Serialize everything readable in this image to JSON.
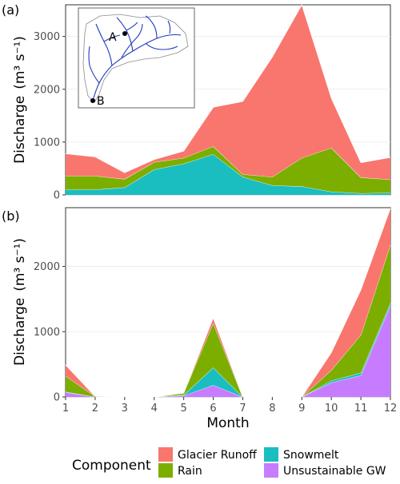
{
  "chart_data": [
    {
      "panel_tag": "(a)",
      "type": "area",
      "stacked": true,
      "x": [
        1,
        2,
        3,
        4,
        5,
        6,
        7,
        8,
        9,
        10,
        11,
        12
      ],
      "ylim": [
        0,
        3600
      ],
      "yticks": [
        0,
        1000,
        2000,
        3000
      ],
      "ylabel": "Discharge",
      "ylabel_unit": "(m³ s⁻¹)",
      "series": [
        {
          "name": "Snowmelt",
          "color": "#1ABDC0",
          "values": [
            100,
            100,
            140,
            480,
            590,
            770,
            340,
            180,
            160,
            60,
            30,
            40
          ]
        },
        {
          "name": "Rain",
          "color": "#7CAE00",
          "values": [
            260,
            260,
            160,
            140,
            110,
            150,
            50,
            160,
            540,
            830,
            300,
            250
          ]
        },
        {
          "name": "Glacier Runoff",
          "color": "#F8766D",
          "values": [
            420,
            360,
            120,
            50,
            130,
            740,
            1380,
            2270,
            2900,
            940,
            280,
            420
          ]
        }
      ],
      "inset": {
        "label_a": "A",
        "label_b": "B"
      }
    },
    {
      "panel_tag": "(b)",
      "type": "area",
      "stacked": true,
      "x": [
        1,
        2,
        3,
        4,
        5,
        6,
        7,
        8,
        9,
        10,
        11,
        12
      ],
      "xticks": [
        1,
        2,
        3,
        4,
        5,
        6,
        7,
        8,
        9,
        10,
        11,
        12
      ],
      "ylim": [
        0,
        2900
      ],
      "yticks": [
        0,
        1000,
        2000
      ],
      "xlabel": "Month",
      "ylabel": "Discharge",
      "ylabel_unit": "(m³ s⁻¹)",
      "series": [
        {
          "name": "Unsustainable GW",
          "color": "#C77CFF",
          "values": [
            70,
            0,
            0,
            0,
            20,
            180,
            0,
            0,
            0,
            220,
            330,
            1400
          ]
        },
        {
          "name": "Snowmelt",
          "color": "#1ABDC0",
          "values": [
            10,
            0,
            0,
            0,
            10,
            270,
            0,
            0,
            0,
            30,
            40,
            40
          ]
        },
        {
          "name": "Rain",
          "color": "#7CAE00",
          "values": [
            240,
            10,
            0,
            0,
            30,
            680,
            0,
            0,
            0,
            160,
            580,
            890
          ]
        },
        {
          "name": "Glacier Runoff",
          "color": "#F8766D",
          "values": [
            170,
            0,
            0,
            0,
            0,
            80,
            0,
            0,
            0,
            270,
            690,
            560
          ]
        }
      ]
    }
  ],
  "legend": {
    "title": "Component",
    "items": [
      {
        "name": "Glacier Runoff",
        "color": "#F8766D"
      },
      {
        "name": "Snowmelt",
        "color": "#1ABDC0"
      },
      {
        "name": "Rain",
        "color": "#7CAE00"
      },
      {
        "name": "Unsustainable GW",
        "color": "#C77CFF"
      }
    ]
  }
}
